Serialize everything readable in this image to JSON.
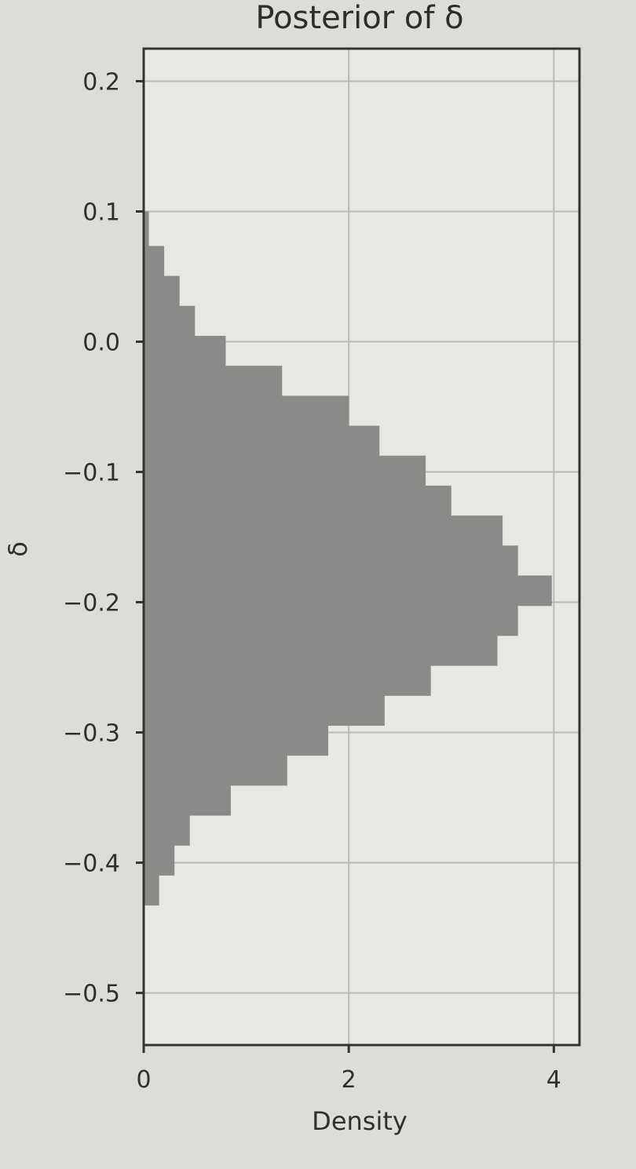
{
  "chart_data": {
    "type": "bar",
    "orientation": "horizontal",
    "title": "Posterior of δ",
    "xlabel": "Density",
    "ylabel": "δ",
    "xlim": [
      0,
      4.25
    ],
    "ylim": [
      -0.54,
      0.225
    ],
    "x_ticks": [
      {
        "value": 0,
        "label": "0"
      },
      {
        "value": 2,
        "label": "2"
      },
      {
        "value": 4,
        "label": "4"
      }
    ],
    "y_ticks": [
      {
        "value": 0.2,
        "label": "0.2"
      },
      {
        "value": 0.1,
        "label": "0.1"
      },
      {
        "value": 0.0,
        "label": "0.0"
      },
      {
        "value": -0.1,
        "label": "−0.1"
      },
      {
        "value": -0.2,
        "label": "−0.2"
      },
      {
        "value": -0.3,
        "label": "−0.3"
      },
      {
        "value": -0.4,
        "label": "−0.4"
      },
      {
        "value": -0.5,
        "label": "−0.5"
      }
    ],
    "grid": true,
    "bin_edges": [
      -0.4325,
      -0.4095,
      -0.3865,
      -0.3635,
      -0.3405,
      -0.3175,
      -0.2945,
      -0.2715,
      -0.2485,
      -0.2255,
      -0.2025,
      -0.1795,
      -0.1565,
      -0.1335,
      -0.1105,
      -0.0875,
      -0.0645,
      -0.0415,
      -0.0185,
      0.0045,
      0.0275,
      0.0505,
      0.0735,
      0.1
    ],
    "densities": [
      0.15,
      0.3,
      0.45,
      0.85,
      1.4,
      1.8,
      2.35,
      2.8,
      3.45,
      3.65,
      3.98,
      3.65,
      3.5,
      3.0,
      2.75,
      2.3,
      2.0,
      1.35,
      0.8,
      0.5,
      0.35,
      0.2,
      0.05
    ],
    "bar_color": "#8a8a88"
  }
}
